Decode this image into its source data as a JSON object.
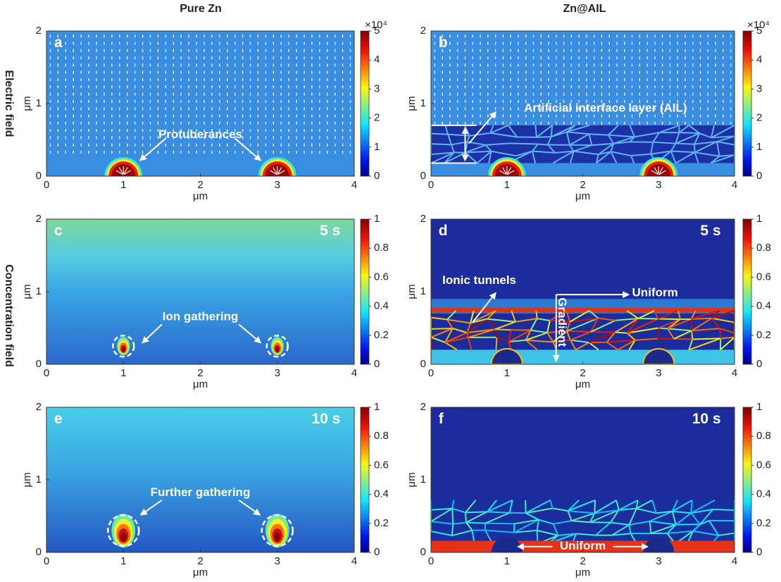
{
  "column_titles": [
    "Pure Zn",
    "Zn@AIL"
  ],
  "row_labels": [
    "Electric field",
    "Concentration field"
  ],
  "chart_data": [
    {
      "type": "heatmap",
      "panel": "a",
      "xlabel": "μm",
      "ylabel": "μm",
      "xlim": [
        0,
        4
      ],
      "ylim": [
        0,
        2
      ],
      "xticks": [
        0,
        1,
        2,
        3,
        4
      ],
      "yticks": [
        0,
        1,
        2
      ],
      "clim": [
        0,
        5
      ],
      "cticks": [
        0,
        1,
        2,
        3,
        4,
        5
      ],
      "colorbar_multiplier": "×10⁴",
      "annotations": [
        "Protuberances"
      ]
    },
    {
      "type": "heatmap",
      "panel": "b",
      "xlabel": "μm",
      "ylabel": "μm",
      "xlim": [
        0,
        4
      ],
      "ylim": [
        0,
        2
      ],
      "xticks": [
        0,
        1,
        2,
        3,
        4
      ],
      "yticks": [
        0,
        1,
        2
      ],
      "clim": [
        0,
        5
      ],
      "cticks": [
        0,
        1,
        2,
        3,
        4,
        5
      ],
      "colorbar_multiplier": "×10⁴",
      "annotations": [
        "Artificial interface layer (AIL)"
      ]
    },
    {
      "type": "heatmap",
      "panel": "c",
      "time_label": "5 s",
      "xlabel": "μm",
      "ylabel": "μm",
      "xlim": [
        0,
        4
      ],
      "ylim": [
        0,
        2
      ],
      "xticks": [
        0,
        1,
        2,
        3,
        4
      ],
      "yticks": [
        0,
        1,
        2
      ],
      "clim": [
        0,
        1
      ],
      "cticks": [
        0,
        0.2,
        0.4,
        0.6,
        0.8,
        1
      ],
      "annotations": [
        "Ion gathering"
      ]
    },
    {
      "type": "heatmap",
      "panel": "d",
      "time_label": "5 s",
      "xlabel": "μm",
      "ylabel": "μm",
      "xlim": [
        0,
        4
      ],
      "ylim": [
        0,
        2
      ],
      "xticks": [
        0,
        1,
        2,
        3,
        4
      ],
      "yticks": [
        0,
        1,
        2
      ],
      "clim": [
        0,
        1
      ],
      "cticks": [
        0,
        0.2,
        0.4,
        0.6,
        0.8,
        1
      ],
      "annotations": [
        "Ionic tunnels",
        "Uniform",
        "Gradient"
      ]
    },
    {
      "type": "heatmap",
      "panel": "e",
      "time_label": "10 s",
      "xlabel": "μm",
      "ylabel": "μm",
      "xlim": [
        0,
        4
      ],
      "ylim": [
        0,
        2
      ],
      "xticks": [
        0,
        1,
        2,
        3,
        4
      ],
      "yticks": [
        0,
        1,
        2
      ],
      "clim": [
        0,
        1
      ],
      "cticks": [
        0,
        0.2,
        0.4,
        0.6,
        0.8,
        1
      ],
      "annotations": [
        "Further gathering"
      ]
    },
    {
      "type": "heatmap",
      "panel": "f",
      "time_label": "10 s",
      "xlabel": "μm",
      "ylabel": "μm",
      "xlim": [
        0,
        4
      ],
      "ylim": [
        0,
        2
      ],
      "xticks": [
        0,
        1,
        2,
        3,
        4
      ],
      "yticks": [
        0,
        1,
        2
      ],
      "clim": [
        0,
        1
      ],
      "cticks": [
        0,
        0.2,
        0.4,
        0.6,
        0.8,
        1
      ],
      "annotations": [
        "Uniform"
      ]
    }
  ]
}
